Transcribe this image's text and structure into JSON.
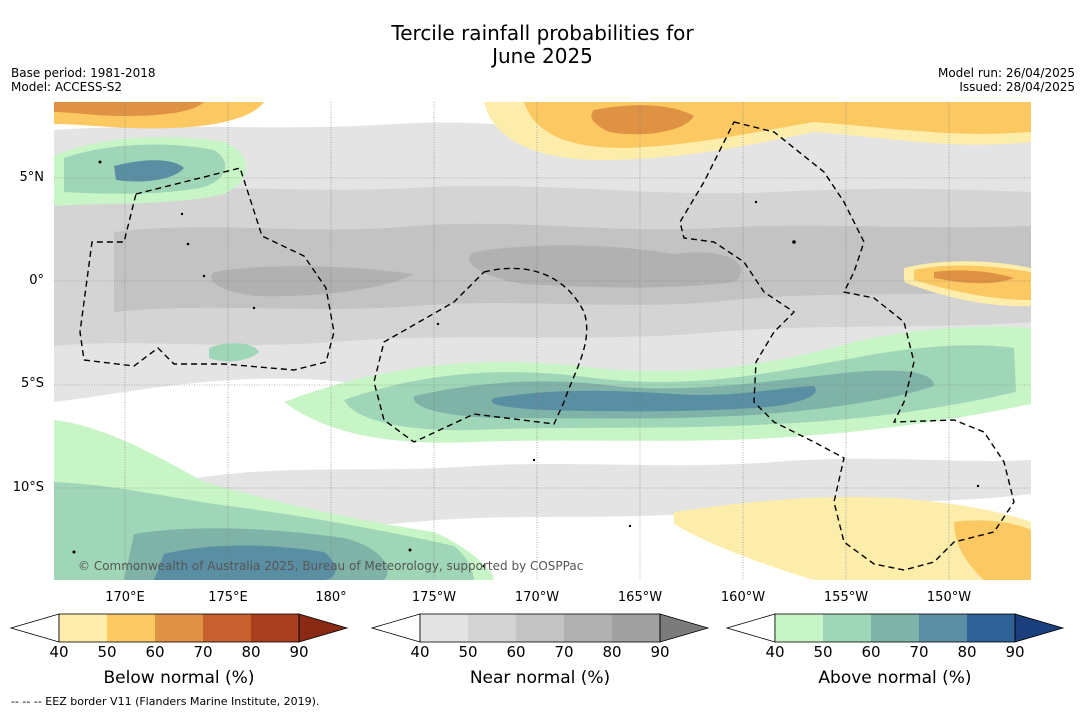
{
  "title_line1": "Tercile rainfall probabilities for",
  "title_line2": "June 2025",
  "left_meta": {
    "base_period": "Base period: 1981-2018",
    "model": "Model: ACCESS-S2"
  },
  "right_meta": {
    "model_run": "Model run: 26/04/2025",
    "issued": "Issued: 28/04/2025"
  },
  "lat_labels": [
    "5°N",
    "0°",
    "5°S",
    "10°S"
  ],
  "lon_labels": [
    "170°E",
    "175°E",
    "180°",
    "175°W",
    "170°W",
    "165°W",
    "160°W",
    "155°W",
    "150°W"
  ],
  "credit": "© Commonwealth of Australia 2025, Bureau of Meteorology, supported by COSPPac",
  "footer": "-- -- -- EEZ border V11 (Flanders Marine Institute, 2019).",
  "colorbars": [
    {
      "label": "Below normal (%)",
      "ticks": [
        "40",
        "50",
        "60",
        "70",
        "80",
        "90"
      ],
      "colors": [
        "#ffffff",
        "#fdedab",
        "#fcc862",
        "#e09244",
        "#c96030",
        "#a8401f",
        "#8b2a14"
      ]
    },
    {
      "label": "Near normal (%)",
      "ticks": [
        "40",
        "50",
        "60",
        "70",
        "80",
        "90"
      ],
      "colors": [
        "#ffffff",
        "#e4e4e4",
        "#d4d4d4",
        "#c3c3c3",
        "#b1b1b1",
        "#a0a0a0",
        "#7b7b7b"
      ]
    },
    {
      "label": "Above normal (%)",
      "ticks": [
        "40",
        "50",
        "60",
        "70",
        "80",
        "90"
      ],
      "colors": [
        "#ffffff",
        "#c8f5c6",
        "#a0d6b8",
        "#7fb3a8",
        "#5a8fa3",
        "#2f6296",
        "#1a3f7c"
      ]
    }
  ]
}
